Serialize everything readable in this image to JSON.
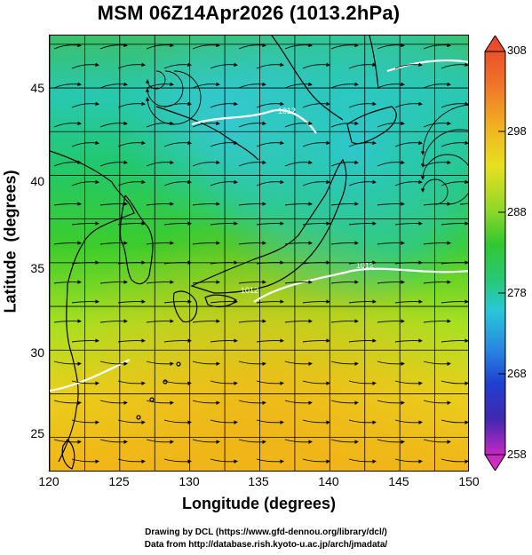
{
  "title": "MSM 06Z14Apr2026 (1013.2hPa)",
  "y_axis": {
    "title": "Latitude  (degrees)",
    "ticks": [
      "45",
      "40",
      "35",
      "30",
      "25"
    ],
    "range": [
      23,
      48
    ]
  },
  "x_axis": {
    "title": "Longitude (degrees)",
    "ticks": [
      "120",
      "125",
      "130",
      "135",
      "140",
      "145",
      "150"
    ],
    "range": [
      120,
      150
    ]
  },
  "colorbar": {
    "labels": [
      "308",
      "298",
      "288",
      "278",
      "268",
      "258"
    ],
    "min": 258,
    "max": 308
  },
  "contour_labels": [
    "1012",
    "1012",
    "1012"
  ],
  "footer": {
    "line1": "Drawing by DCL (https://www.gfd-dennou.org/library/dcl/)",
    "line2": "Data from http://database.rish.kyoto-u.ac.jp/arch/jmadata/"
  },
  "colors": {
    "land_outline": "#000000",
    "isobar": "#ffffff",
    "warm": "#f0c020",
    "mid": "#30c030",
    "cool": "#30c8d8"
  }
}
